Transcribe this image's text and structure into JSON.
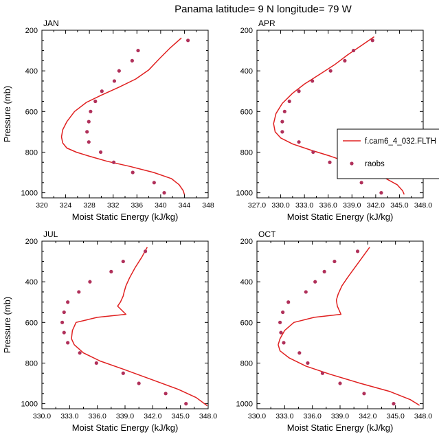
{
  "figure": {
    "title": "Panama  latitude= 9 N longitude= 79 W"
  },
  "legend": {
    "entries": [
      {
        "label": "f.cam6_4_032.FLTH",
        "marker": "line",
        "color": "#e02020"
      },
      {
        "label": "raobs",
        "marker": "dot",
        "color": "#b0305a"
      }
    ]
  },
  "colors": {
    "model_line": "#e02020",
    "obs_marker": "#b0305a",
    "axis": "#000000"
  },
  "chart_data": [
    {
      "type": "line",
      "panel": "JAN",
      "title": "JAN",
      "xlabel": "Moist Static Energy (kJ/kg)",
      "ylabel": "Pressure (mb)",
      "xlim": [
        320,
        348
      ],
      "ylim": [
        1025,
        200
      ],
      "xticks": [
        320,
        324,
        328,
        332,
        336,
        340,
        344,
        348
      ],
      "xtick_labels": [
        "320",
        "324",
        "328",
        "332",
        "336",
        "340",
        "344",
        "348"
      ],
      "yticks": [
        200,
        400,
        600,
        800,
        1000
      ],
      "ytick_labels": [
        "200",
        "400",
        "600",
        "800",
        "1000"
      ],
      "series": [
        {
          "name": "f.cam6_4_032.FLTH",
          "style": "line",
          "x": [
            343.5,
            341.5,
            339.8,
            338.0,
            335.8,
            333.0,
            330.0,
            327.5,
            325.5,
            324.2,
            323.5,
            323.3,
            323.5,
            324.2,
            325.8,
            328.0,
            331.0,
            334.8,
            338.8,
            341.8,
            343.1,
            343.8,
            344.0
          ],
          "y": [
            238,
            290,
            340,
            395,
            440,
            480,
            520,
            555,
            600,
            650,
            690,
            725,
            755,
            780,
            800,
            820,
            845,
            870,
            900,
            930,
            960,
            990,
            1008
          ]
        },
        {
          "name": "raobs",
          "style": "marker",
          "x": [
            344.6,
            336.2,
            335.2,
            333.0,
            332.2,
            330.1,
            329.0,
            328.2,
            327.9,
            327.6,
            327.9,
            329.9,
            332.1,
            335.3,
            338.9,
            340.6
          ],
          "y": [
            250,
            300,
            350,
            400,
            450,
            500,
            550,
            600,
            650,
            700,
            750,
            800,
            850,
            900,
            950,
            1000
          ]
        }
      ]
    },
    {
      "type": "line",
      "panel": "APR",
      "title": "APR",
      "xlabel": "Moist Static Energy (kJ/kg)",
      "ylabel": "",
      "xlim": [
        327,
        348
      ],
      "ylim": [
        1025,
        200
      ],
      "xticks": [
        327,
        330,
        333,
        336,
        339,
        342,
        345,
        348
      ],
      "xtick_labels": [
        "327.0",
        "330.0",
        "333.0",
        "336.0",
        "339.0",
        "342.0",
        "345.0",
        "348.0"
      ],
      "yticks": [
        200,
        400,
        600,
        800,
        1000
      ],
      "ytick_labels": [
        "200",
        "400",
        "600",
        "800",
        "1000"
      ],
      "series": [
        {
          "name": "f.cam6_4_032.FLTH",
          "style": "line",
          "x": [
            341.8,
            340.2,
            338.5,
            336.8,
            334.8,
            333.0,
            331.5,
            330.2,
            329.4,
            329.1,
            329.3,
            330.0,
            331.5,
            333.8,
            336.3,
            338.5,
            340.5,
            342.8,
            344.7,
            345.4,
            345.6
          ],
          "y": [
            232,
            275,
            320,
            370,
            420,
            465,
            510,
            560,
            610,
            660,
            700,
            730,
            760,
            790,
            820,
            850,
            880,
            920,
            960,
            990,
            1008
          ]
        },
        {
          "name": "raobs",
          "style": "marker",
          "x": [
            341.6,
            339.2,
            338.1,
            336.3,
            334.0,
            332.3,
            331.1,
            330.5,
            330.2,
            330.2,
            332.3,
            334.1,
            336.2,
            337.6,
            340.2,
            342.7
          ],
          "y": [
            250,
            300,
            350,
            400,
            450,
            500,
            550,
            600,
            650,
            700,
            750,
            800,
            850,
            900,
            950,
            1000
          ]
        }
      ]
    },
    {
      "type": "line",
      "panel": "JUL",
      "title": "JUL",
      "xlabel": "Moist Static Energy (kJ/kg)",
      "ylabel": "Pressure (mb)",
      "xlim": [
        330,
        348
      ],
      "ylim": [
        1025,
        200
      ],
      "xticks": [
        330,
        333,
        336,
        339,
        342,
        345,
        348
      ],
      "xtick_labels": [
        "330.0",
        "333.0",
        "336.0",
        "339.0",
        "342.0",
        "345.0",
        "348.0"
      ],
      "yticks": [
        200,
        400,
        600,
        800,
        1000
      ],
      "ytick_labels": [
        "200",
        "400",
        "600",
        "800",
        "1000"
      ],
      "series": [
        {
          "name": "f.cam6_4_032.FLTH",
          "style": "line",
          "x": [
            341.4,
            340.8,
            340.1,
            339.5,
            339.1,
            338.9,
            338.8,
            338.5,
            338.2,
            339.1,
            336.0,
            333.7,
            333.3,
            333.2,
            333.5,
            334.5,
            336.3,
            338.8,
            341.8,
            344.8,
            346.7,
            347.9
          ],
          "y": [
            230,
            280,
            330,
            380,
            420,
            450,
            470,
            500,
            520,
            560,
            575,
            600,
            640,
            680,
            710,
            750,
            790,
            830,
            880,
            930,
            970,
            1010
          ]
        },
        {
          "name": "raobs",
          "style": "marker",
          "x": [
            341.2,
            338.8,
            337.5,
            335.2,
            334.0,
            332.8,
            332.4,
            332.2,
            332.4,
            332.8,
            334.1,
            335.9,
            338.8,
            340.5,
            343.4,
            345.6
          ],
          "y": [
            250,
            300,
            350,
            400,
            450,
            500,
            550,
            600,
            650,
            700,
            750,
            800,
            850,
            900,
            950,
            1000
          ]
        }
      ]
    },
    {
      "type": "line",
      "panel": "OCT",
      "title": "OCT",
      "xlabel": "Moist Static Energy (kJ/kg)",
      "ylabel": "",
      "xlim": [
        330,
        348
      ],
      "ylim": [
        1025,
        200
      ],
      "xticks": [
        330,
        333,
        336,
        339,
        342,
        345,
        348
      ],
      "xtick_labels": [
        "330.0",
        "333.0",
        "336.0",
        "339.0",
        "342.0",
        "345.0",
        "348.0"
      ],
      "yticks": [
        200,
        400,
        600,
        800,
        1000
      ],
      "ytick_labels": [
        "200",
        "400",
        "600",
        "800",
        "1000"
      ],
      "series": [
        {
          "name": "f.cam6_4_032.FLTH",
          "style": "line",
          "x": [
            342.2,
            341.4,
            340.6,
            339.8,
            339.2,
            338.8,
            338.6,
            338.7,
            339.1,
            336.2,
            334.0,
            333.0,
            332.5,
            332.3,
            332.5,
            333.5,
            335.3,
            337.9,
            341.2,
            344.4,
            346.6,
            347.6
          ],
          "y": [
            230,
            280,
            330,
            380,
            420,
            460,
            490,
            520,
            560,
            575,
            600,
            640,
            680,
            710,
            740,
            775,
            815,
            855,
            900,
            940,
            980,
            1008
          ]
        },
        {
          "name": "raobs",
          "style": "marker",
          "x": [
            340.9,
            338.4,
            337.3,
            336.3,
            335.3,
            333.4,
            332.8,
            332.5,
            332.6,
            332.9,
            334.6,
            335.5,
            337.1,
            339.0,
            341.6,
            344.8
          ],
          "y": [
            250,
            300,
            350,
            400,
            450,
            500,
            550,
            600,
            650,
            700,
            750,
            800,
            850,
            900,
            950,
            1000
          ]
        }
      ]
    }
  ]
}
